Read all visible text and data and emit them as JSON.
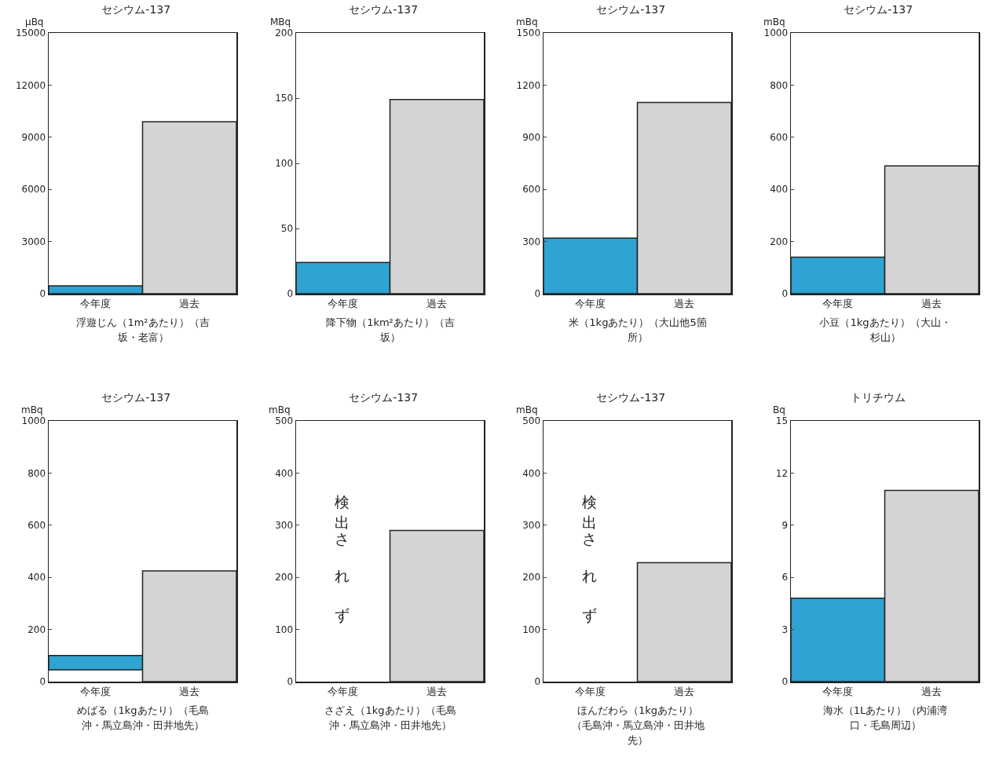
{
  "chart_data": [
    {
      "type": "bar",
      "title": "セシウム-137",
      "ylabel": "μBq",
      "xlabel": "浮遊じん（1m²あたり）（吉坂・老富）",
      "categories": [
        "今年度",
        "過去"
      ],
      "values": [
        450,
        9900
      ],
      "colors": [
        "#2fa3d1",
        "#d4d4d4"
      ],
      "ylim": [
        0,
        15000
      ],
      "yticks": [
        0,
        3000,
        6000,
        9000,
        12000,
        15000
      ]
    },
    {
      "type": "bar",
      "title": "セシウム-137",
      "ylabel": "MBq",
      "xlabel": "降下物（1km²あたり）（吉坂）",
      "categories": [
        "今年度",
        "過去"
      ],
      "values": [
        24,
        149
      ],
      "colors": [
        "#2fa3d1",
        "#d4d4d4"
      ],
      "ylim": [
        0,
        200
      ],
      "yticks": [
        0,
        50,
        100,
        150,
        200
      ]
    },
    {
      "type": "bar",
      "title": "セシウム-137",
      "ylabel": "mBq",
      "xlabel": "米（1kgあたり）（大山他5箇所）",
      "categories": [
        "今年度",
        "過去"
      ],
      "values": [
        320,
        1100
      ],
      "colors": [
        "#2fa3d1",
        "#d4d4d4"
      ],
      "ylim": [
        0,
        1500
      ],
      "yticks": [
        0,
        300,
        600,
        900,
        1200,
        1500
      ]
    },
    {
      "type": "bar",
      "title": "セシウム-137",
      "ylabel": "mBq",
      "xlabel": "小豆（1kgあたり）（大山・杉山）",
      "categories": [
        "今年度",
        "過去"
      ],
      "values": [
        140,
        490
      ],
      "colors": [
        "#2fa3d1",
        "#d4d4d4"
      ],
      "ylim": [
        0,
        1000
      ],
      "yticks": [
        0,
        200,
        400,
        600,
        800,
        1000
      ]
    },
    {
      "type": "bar",
      "title": "セシウム-137",
      "ylabel": "mBq",
      "xlabel": "めばる（1kgあたり）（毛島沖・馬立島沖・田井地先）",
      "categories": [
        "今年度",
        "過去"
      ],
      "values": [
        55,
        425
      ],
      "base": [
        45,
        0
      ],
      "colors": [
        "#2fa3d1",
        "#d4d4d4"
      ],
      "ylim": [
        0,
        1000
      ],
      "yticks": [
        0,
        200,
        400,
        600,
        800,
        1000
      ]
    },
    {
      "type": "bar",
      "title": "セシウム-137",
      "ylabel": "mBq",
      "xlabel": "さざえ（1kgあたり）（毛島沖・馬立島沖・田井地先）",
      "categories": [
        "今年度",
        "過去"
      ],
      "values": [
        null,
        290
      ],
      "colors": [
        "#2fa3d1",
        "#d4d4d4"
      ],
      "ylim": [
        0,
        500
      ],
      "yticks": [
        0,
        100,
        200,
        300,
        400,
        500
      ],
      "annotations": [
        "検出されず"
      ]
    },
    {
      "type": "bar",
      "title": "セシウム-137",
      "ylabel": "mBq",
      "xlabel": "ほんだわら（1kgあたり）（毛島沖・馬立島沖・田井地先）",
      "categories": [
        "今年度",
        "過去"
      ],
      "values": [
        null,
        228
      ],
      "colors": [
        "#2fa3d1",
        "#d4d4d4"
      ],
      "ylim": [
        0,
        500
      ],
      "yticks": [
        0,
        100,
        200,
        300,
        400,
        500
      ],
      "annotations": [
        "検出されず"
      ]
    },
    {
      "type": "bar",
      "title": "トリチウム",
      "ylabel": "Bq",
      "xlabel": "海水（1Lあたり）（内浦湾口・毛島周辺）",
      "categories": [
        "今年度",
        "過去"
      ],
      "values": [
        4.8,
        11
      ],
      "colors": [
        "#2fa3d1",
        "#d4d4d4"
      ],
      "ylim": [
        0,
        15
      ],
      "yticks": [
        0,
        3,
        6,
        9,
        12,
        15
      ]
    }
  ]
}
